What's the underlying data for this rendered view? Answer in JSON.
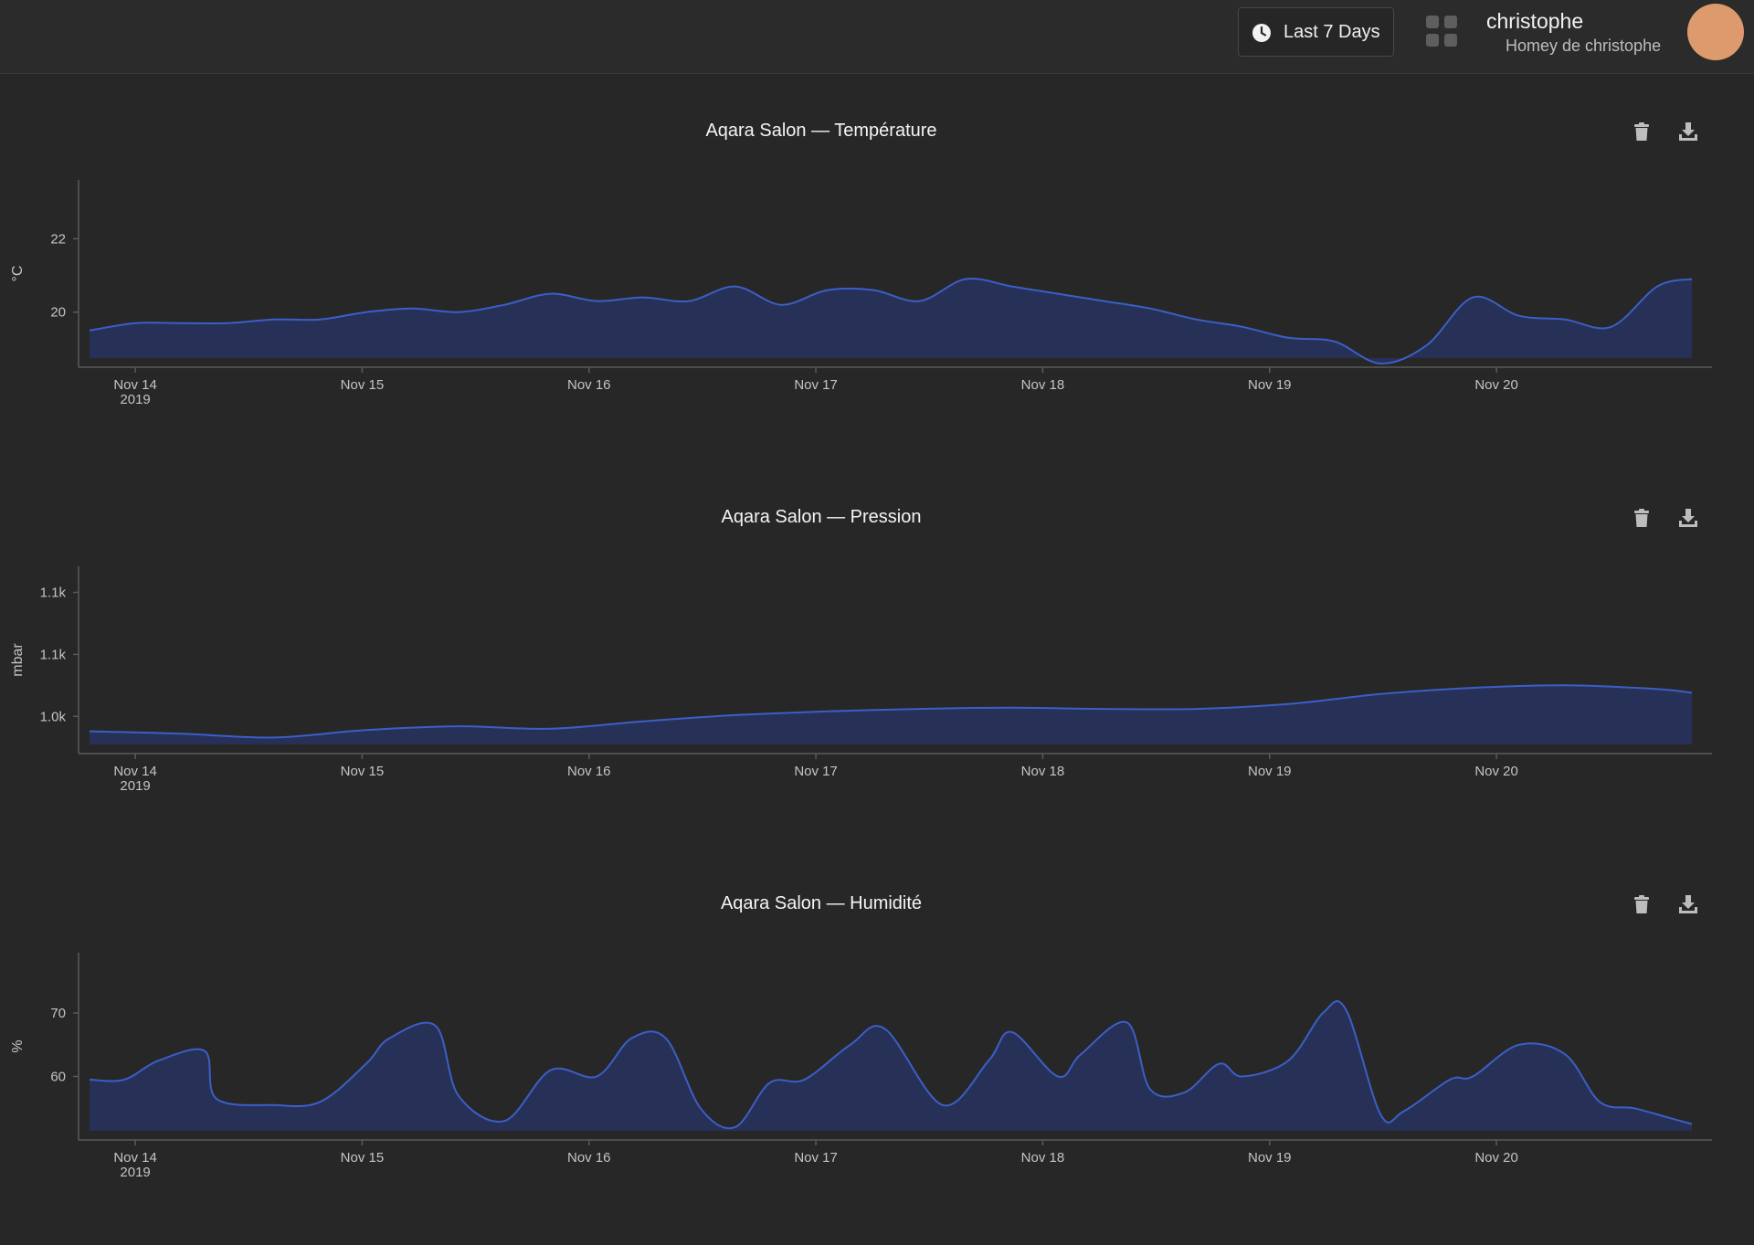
{
  "header": {
    "range_label": "Last 7 Days",
    "user_name": "christophe",
    "user_home": "Homey de christophe",
    "avatar_color": "#dd9a6c"
  },
  "colors": {
    "series_line": "#3b5fc6",
    "series_fill": "#27305a",
    "background": "#272727"
  },
  "chart_data": [
    {
      "type": "area",
      "title": "Aqara Salon — Température",
      "ylabel": "°C",
      "yticks": [
        {
          "value": 20,
          "label": "20"
        },
        {
          "value": 22,
          "label": "22"
        }
      ],
      "ylim": [
        18.5,
        23.6
      ],
      "xlim": [
        0,
        7.2
      ],
      "xticks": [
        {
          "value": 0.25,
          "label": "Nov 14",
          "sub": "2019"
        },
        {
          "value": 1.25,
          "label": "Nov 15"
        },
        {
          "value": 2.25,
          "label": "Nov 16"
        },
        {
          "value": 3.25,
          "label": "Nov 17"
        },
        {
          "value": 4.25,
          "label": "Nov 18"
        },
        {
          "value": 5.25,
          "label": "Nov 19"
        },
        {
          "value": 6.25,
          "label": "Nov 20"
        }
      ],
      "x": [
        0.0,
        0.2,
        0.4,
        0.6,
        0.8,
        1.0,
        1.2,
        1.4,
        1.6,
        1.8,
        2.0,
        2.2,
        2.4,
        2.6,
        2.8,
        3.0,
        3.2,
        3.4,
        3.6,
        3.8,
        4.0,
        4.2,
        4.4,
        4.6,
        4.8,
        5.0,
        5.2,
        5.4,
        5.6,
        5.8,
        6.0,
        6.2,
        6.4,
        6.6,
        6.8,
        6.95
      ],
      "values": [
        19.5,
        19.7,
        19.7,
        19.7,
        19.8,
        19.8,
        20.0,
        20.1,
        20.0,
        20.2,
        20.5,
        20.3,
        20.4,
        20.3,
        20.7,
        20.2,
        20.6,
        20.6,
        20.3,
        20.9,
        20.7,
        20.5,
        20.3,
        20.1,
        19.8,
        19.6,
        19.3,
        19.2,
        18.6,
        19.1,
        20.4,
        19.9,
        19.8,
        19.6,
        20.7,
        20.9
      ]
    },
    {
      "type": "area",
      "title": "Aqara Salon — Pression",
      "ylabel": "mbar",
      "yticks": [
        {
          "value": 1000,
          "label": "1.0k"
        },
        {
          "value": 1050,
          "label": "1.1k"
        },
        {
          "value": 1100,
          "label": "1.1k"
        }
      ],
      "ylim": [
        970,
        1121
      ],
      "xlim": [
        0,
        7.2
      ],
      "xticks": [
        {
          "value": 0.25,
          "label": "Nov 14",
          "sub": "2019"
        },
        {
          "value": 1.25,
          "label": "Nov 15"
        },
        {
          "value": 2.25,
          "label": "Nov 16"
        },
        {
          "value": 3.25,
          "label": "Nov 17"
        },
        {
          "value": 4.25,
          "label": "Nov 18"
        },
        {
          "value": 5.25,
          "label": "Nov 19"
        },
        {
          "value": 6.25,
          "label": "Nov 20"
        }
      ],
      "x": [
        0.0,
        0.4,
        0.8,
        1.2,
        1.6,
        2.0,
        2.4,
        2.8,
        3.2,
        3.6,
        4.0,
        4.4,
        4.8,
        5.2,
        5.6,
        6.0,
        6.4,
        6.8,
        6.95
      ],
      "values": [
        988,
        986,
        983,
        989,
        992,
        990,
        996,
        1001,
        1004,
        1006,
        1007,
        1006,
        1006,
        1010,
        1018,
        1023,
        1025,
        1022,
        1019
      ]
    },
    {
      "type": "area",
      "title": "Aqara Salon — Humidité",
      "ylabel": "%",
      "yticks": [
        {
          "value": 60,
          "label": "60"
        },
        {
          "value": 70,
          "label": "70"
        }
      ],
      "ylim": [
        50,
        79.5
      ],
      "xlim": [
        0,
        7.2
      ],
      "xticks": [
        {
          "value": 0.25,
          "label": "Nov 14",
          "sub": "2019"
        },
        {
          "value": 1.25,
          "label": "Nov 15"
        },
        {
          "value": 2.25,
          "label": "Nov 16"
        },
        {
          "value": 3.25,
          "label": "Nov 17"
        },
        {
          "value": 4.25,
          "label": "Nov 18"
        },
        {
          "value": 5.25,
          "label": "Nov 19"
        },
        {
          "value": 6.25,
          "label": "Nov 20"
        }
      ],
      "x": [
        0.0,
        0.15,
        0.3,
        0.5,
        0.55,
        0.8,
        1.0,
        1.2,
        1.3,
        1.5,
        1.6,
        1.8,
        2.0,
        2.2,
        2.35,
        2.5,
        2.65,
        2.8,
        2.95,
        3.1,
        3.3,
        3.45,
        3.7,
        3.9,
        4.0,
        4.2,
        4.3,
        4.5,
        4.6,
        4.75,
        4.9,
        5.0,
        5.2,
        5.35,
        5.45,
        5.6,
        5.7,
        5.9,
        6.0,
        6.2,
        6.4,
        6.55,
        6.7,
        6.85,
        6.95
      ],
      "values": [
        59.5,
        59.5,
        62.5,
        64,
        56.5,
        55.5,
        56,
        62,
        66,
        68,
        57,
        53,
        61,
        60,
        66,
        66,
        55,
        52,
        59,
        59.5,
        65,
        67.5,
        55.5,
        62.5,
        67,
        60,
        63.5,
        68.5,
        58,
        57.5,
        62,
        60,
        62.5,
        70,
        70.5,
        54,
        54.5,
        59.5,
        60,
        65,
        63.5,
        56,
        55,
        53.5,
        52.5
      ]
    }
  ]
}
